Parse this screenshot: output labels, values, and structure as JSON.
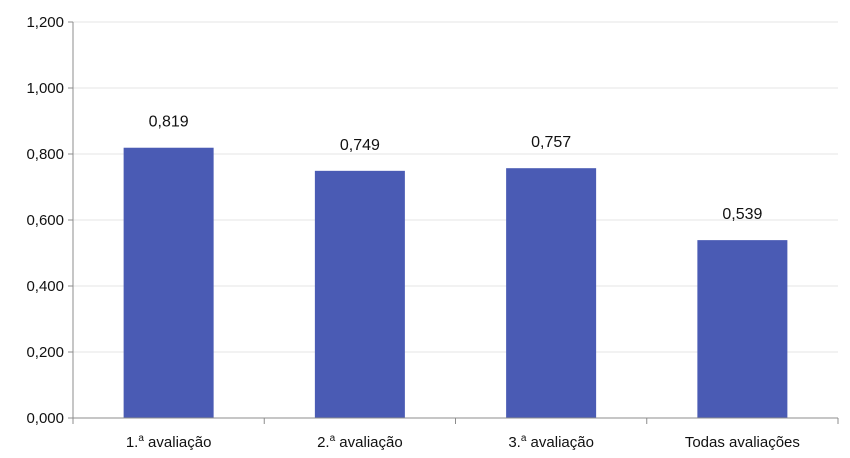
{
  "chart_data": {
    "type": "bar",
    "title": "",
    "xlabel": "",
    "ylabel": "",
    "categories": [
      "1.ª avaliação",
      "2.ª avaliação",
      "3.ª avaliação",
      "Todas avaliações"
    ],
    "category_parts": [
      {
        "prefix": "1.",
        "sup": "a",
        "suffix": " avaliação"
      },
      {
        "prefix": "2.",
        "sup": "a",
        "suffix": " avaliação"
      },
      {
        "prefix": "3.",
        "sup": "a",
        "suffix": " avaliação"
      },
      {
        "prefix": "Todas avaliações",
        "sup": "",
        "suffix": ""
      }
    ],
    "values": [
      0.819,
      0.749,
      0.757,
      0.539
    ],
    "data_labels": [
      "0,819",
      "0,749",
      "0,757",
      "0,539"
    ],
    "ylim": [
      0,
      1.2
    ],
    "yticks": [
      0,
      0.2,
      0.4,
      0.6,
      0.8,
      1.0,
      1.2
    ],
    "ytick_labels": [
      "0,000",
      "0,200",
      "0,400",
      "0,600",
      "0,800",
      "1,000",
      "1,200"
    ],
    "grid": true,
    "legend": "none",
    "colors": {
      "bar": "#4a5bb4",
      "axis": "#8c8c8c",
      "grid": "#e6e6e6",
      "text": "#111111"
    }
  }
}
